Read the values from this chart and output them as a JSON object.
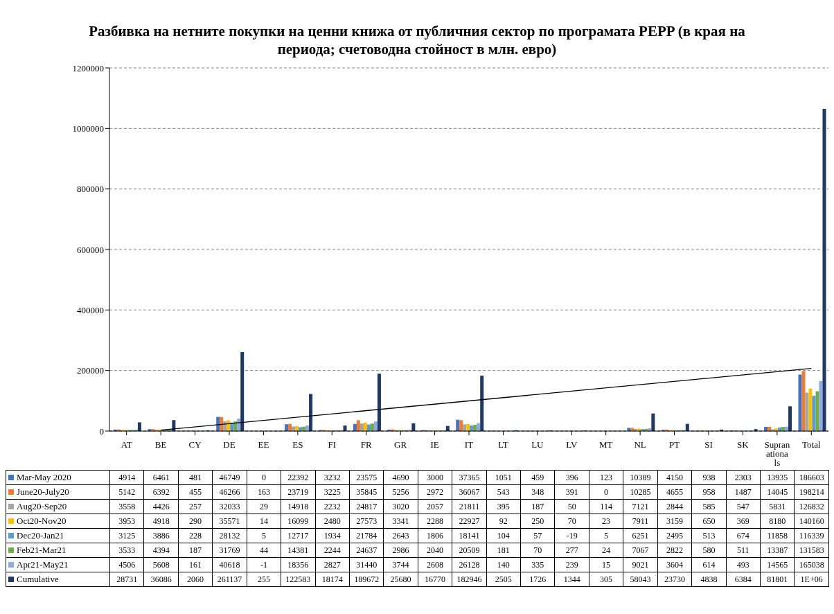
{
  "chart_data": {
    "type": "bar",
    "title": "Разбивка на нетните покупки на ценни книжа от публичния сектор по програмата PEPP (в края на периода; счетоводна стойност в млн. евро)",
    "categories": [
      "AT",
      "BE",
      "CY",
      "DE",
      "EE",
      "ES",
      "FI",
      "FR",
      "GR",
      "IE",
      "IT",
      "LT",
      "LU",
      "LV",
      "MT",
      "NL",
      "PT",
      "SI",
      "SK",
      "Supranationals",
      "Total"
    ],
    "series": [
      {
        "name": "Mar-May 2020",
        "color": "#4472c4",
        "values": [
          4914,
          6461,
          481,
          46749,
          0,
          22392,
          3232,
          23575,
          4690,
          3000,
          37365,
          1051,
          459,
          396,
          123,
          10389,
          4150,
          938,
          2303,
          13935,
          186603
        ]
      },
      {
        "name": "June20-July20",
        "color": "#ed7d31",
        "values": [
          5142,
          6392,
          455,
          46266,
          163,
          23719,
          3225,
          35845,
          5256,
          2972,
          36067,
          543,
          348,
          391,
          0,
          10285,
          4655,
          958,
          1487,
          14045,
          198214
        ]
      },
      {
        "name": "Aug20-Sep20",
        "color": "#a5a5a5",
        "values": [
          3558,
          4426,
          257,
          32033,
          29,
          14918,
          2232,
          24817,
          3020,
          2057,
          21811,
          395,
          187,
          50,
          114,
          7121,
          2844,
          585,
          547,
          5831,
          126832
        ]
      },
      {
        "name": "Oct20-Nov20",
        "color": "#ffc000",
        "values": [
          3953,
          4918,
          290,
          35571,
          14,
          16099,
          2480,
          27573,
          3341,
          2288,
          22927,
          92,
          250,
          70,
          23,
          7911,
          3159,
          650,
          369,
          8180,
          140160
        ]
      },
      {
        "name": "Dec20-Jan21",
        "color": "#5b9bd5",
        "values": [
          3125,
          3886,
          228,
          28132,
          5,
          12717,
          1934,
          21784,
          2643,
          1806,
          18141,
          104,
          57,
          -19,
          5,
          6251,
          2495,
          513,
          674,
          11858,
          116339
        ]
      },
      {
        "name": "Feb21-Mar21",
        "color": "#70ad47",
        "values": [
          3533,
          4394,
          187,
          31769,
          44,
          14381,
          2244,
          24637,
          2986,
          2040,
          20509,
          181,
          70,
          277,
          24,
          7067,
          2822,
          580,
          511,
          13387,
          131583
        ]
      },
      {
        "name": "Apr21-May21",
        "color": "#8faadc",
        "values": [
          4506,
          5608,
          161,
          40618,
          -1,
          18356,
          2827,
          31440,
          3744,
          2608,
          26128,
          140,
          335,
          239,
          15,
          9021,
          3604,
          614,
          493,
          14565,
          165038
        ]
      },
      {
        "name": "Cumulative",
        "color": "#1f3864",
        "values": [
          28731,
          36086,
          2060,
          261137,
          255,
          122583,
          18174,
          189672,
          25680,
          16770,
          182946,
          2505,
          1726,
          1344,
          305,
          58043,
          23730,
          4838,
          6384,
          81801,
          1064769
        ],
        "value_labels": [
          "28731",
          "36086",
          "2060",
          "261137",
          "255",
          "122583",
          "18174",
          "189672",
          "25680",
          "16770",
          "182946",
          "2505",
          "1726",
          "1344",
          "305",
          "58043",
          "23730",
          "4838",
          "6384",
          "81801",
          "1E+06"
        ]
      },
      {
        "type": "line",
        "color": "#000000",
        "x": [
          "BE",
          "Total"
        ],
        "values": [
          3000,
          207000
        ],
        "value_labels": [
          null,
          null
        ]
      }
    ],
    "ylim": [
      -20,
      1200000
    ],
    "yticks": [
      0,
      200000,
      400000,
      600000,
      800000,
      1000000,
      1200000
    ],
    "grid": "y",
    "legend": "bottom",
    "data_labels": true
  }
}
